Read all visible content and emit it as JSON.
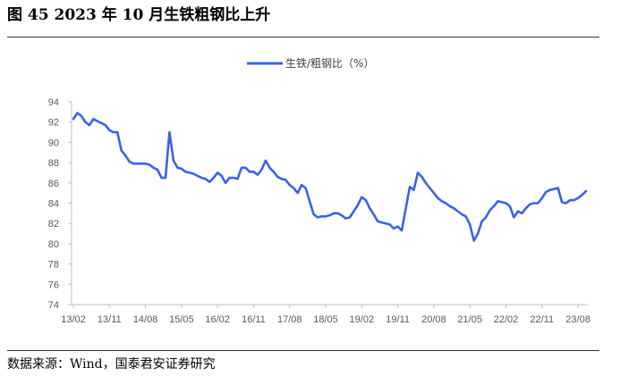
{
  "header": {
    "title": "图 45 2023 年 10 月生铁粗钢比上升"
  },
  "footer": {
    "source": "数据来源：Wind，国泰君安证券研究"
  },
  "chart_data": {
    "type": "line",
    "title": "图 45 2023 年 10 月生铁粗钢比上升",
    "xlabel": "",
    "ylabel": "",
    "ylim": [
      74,
      94
    ],
    "yticks": [
      74,
      76,
      78,
      80,
      82,
      84,
      86,
      88,
      90,
      92,
      94
    ],
    "xticks": [
      "13/02",
      "13/11",
      "14/08",
      "15/05",
      "16/02",
      "16/11",
      "17/08",
      "18/05",
      "19/02",
      "19/11",
      "20/08",
      "21/05",
      "22/02",
      "22/11",
      "23/08"
    ],
    "grid": false,
    "legend_position": "top-center",
    "color": "#3A62E8",
    "series": [
      {
        "name": "生铁/粗钢比（%）",
        "x": [
          "2013-02",
          "2013-03",
          "2013-04",
          "2013-05",
          "2013-06",
          "2013-07",
          "2013-08",
          "2013-09",
          "2013-10",
          "2013-11",
          "2013-12",
          "2014-01",
          "2014-02",
          "2014-03",
          "2014-04",
          "2014-05",
          "2014-06",
          "2014-07",
          "2014-08",
          "2014-09",
          "2014-10",
          "2014-11",
          "2014-12",
          "2015-01",
          "2015-02",
          "2015-03",
          "2015-04",
          "2015-05",
          "2015-06",
          "2015-07",
          "2015-08",
          "2015-09",
          "2015-10",
          "2015-11",
          "2015-12",
          "2016-01",
          "2016-02",
          "2016-03",
          "2016-04",
          "2016-05",
          "2016-06",
          "2016-07",
          "2016-08",
          "2016-09",
          "2016-10",
          "2016-11",
          "2016-12",
          "2017-01",
          "2017-02",
          "2017-03",
          "2017-04",
          "2017-05",
          "2017-06",
          "2017-07",
          "2017-08",
          "2017-09",
          "2017-10",
          "2017-11",
          "2017-12",
          "2018-01",
          "2018-02",
          "2018-03",
          "2018-04",
          "2018-05",
          "2018-06",
          "2018-07",
          "2018-08",
          "2018-09",
          "2018-10",
          "2018-11",
          "2018-12",
          "2019-01",
          "2019-02",
          "2019-03",
          "2019-04",
          "2019-05",
          "2019-06",
          "2019-07",
          "2019-08",
          "2019-09",
          "2019-10",
          "2019-11",
          "2019-12",
          "2020-01",
          "2020-02",
          "2020-03",
          "2020-04",
          "2020-05",
          "2020-06",
          "2020-07",
          "2020-08",
          "2020-09",
          "2020-10",
          "2020-11",
          "2020-12",
          "2021-01",
          "2021-02",
          "2021-03",
          "2021-04",
          "2021-05",
          "2021-06",
          "2021-07",
          "2021-08",
          "2021-09",
          "2021-10",
          "2021-11",
          "2021-12",
          "2022-01",
          "2022-02",
          "2022-03",
          "2022-04",
          "2022-05",
          "2022-06",
          "2022-07",
          "2022-08",
          "2022-09",
          "2022-10",
          "2022-11",
          "2022-12",
          "2023-01",
          "2023-02",
          "2023-03",
          "2023-04",
          "2023-05",
          "2023-06",
          "2023-07",
          "2023-08",
          "2023-09",
          "2023-10"
        ],
        "values": [
          92.3,
          92.9,
          92.6,
          92.0,
          91.7,
          92.3,
          92.1,
          91.9,
          91.7,
          91.2,
          91.0,
          91.0,
          89.2,
          88.7,
          88.1,
          87.9,
          87.9,
          87.9,
          87.9,
          87.8,
          87.5,
          87.3,
          86.5,
          86.5,
          91.0,
          88.2,
          87.5,
          87.4,
          87.1,
          87.0,
          86.9,
          86.7,
          86.5,
          86.4,
          86.1,
          86.5,
          87.0,
          86.7,
          86.0,
          86.5,
          86.5,
          86.4,
          87.5,
          87.5,
          87.1,
          87.1,
          86.8,
          87.3,
          88.2,
          87.5,
          87.1,
          86.6,
          86.4,
          86.3,
          85.8,
          85.5,
          85.0,
          85.8,
          85.5,
          84.2,
          82.9,
          82.6,
          82.7,
          82.7,
          82.8,
          83.0,
          83.0,
          82.8,
          82.5,
          82.6,
          83.2,
          83.8,
          84.6,
          84.3,
          83.5,
          82.9,
          82.2,
          82.1,
          82.0,
          81.9,
          81.5,
          81.7,
          81.3,
          83.5,
          85.6,
          85.3,
          87.0,
          86.6,
          86.0,
          85.5,
          85.0,
          84.5,
          84.2,
          84.0,
          83.7,
          83.5,
          83.2,
          82.9,
          82.7,
          81.9,
          80.3,
          81.0,
          82.2,
          82.6,
          83.3,
          83.7,
          84.2,
          84.1,
          84.0,
          83.7,
          82.6,
          83.2,
          83.0,
          83.5,
          83.9,
          84.0,
          84.0,
          84.5,
          85.1,
          85.3,
          85.4,
          85.5,
          84.1,
          84.0,
          84.3,
          84.3,
          84.5,
          84.8,
          85.2
        ]
      }
    ]
  }
}
